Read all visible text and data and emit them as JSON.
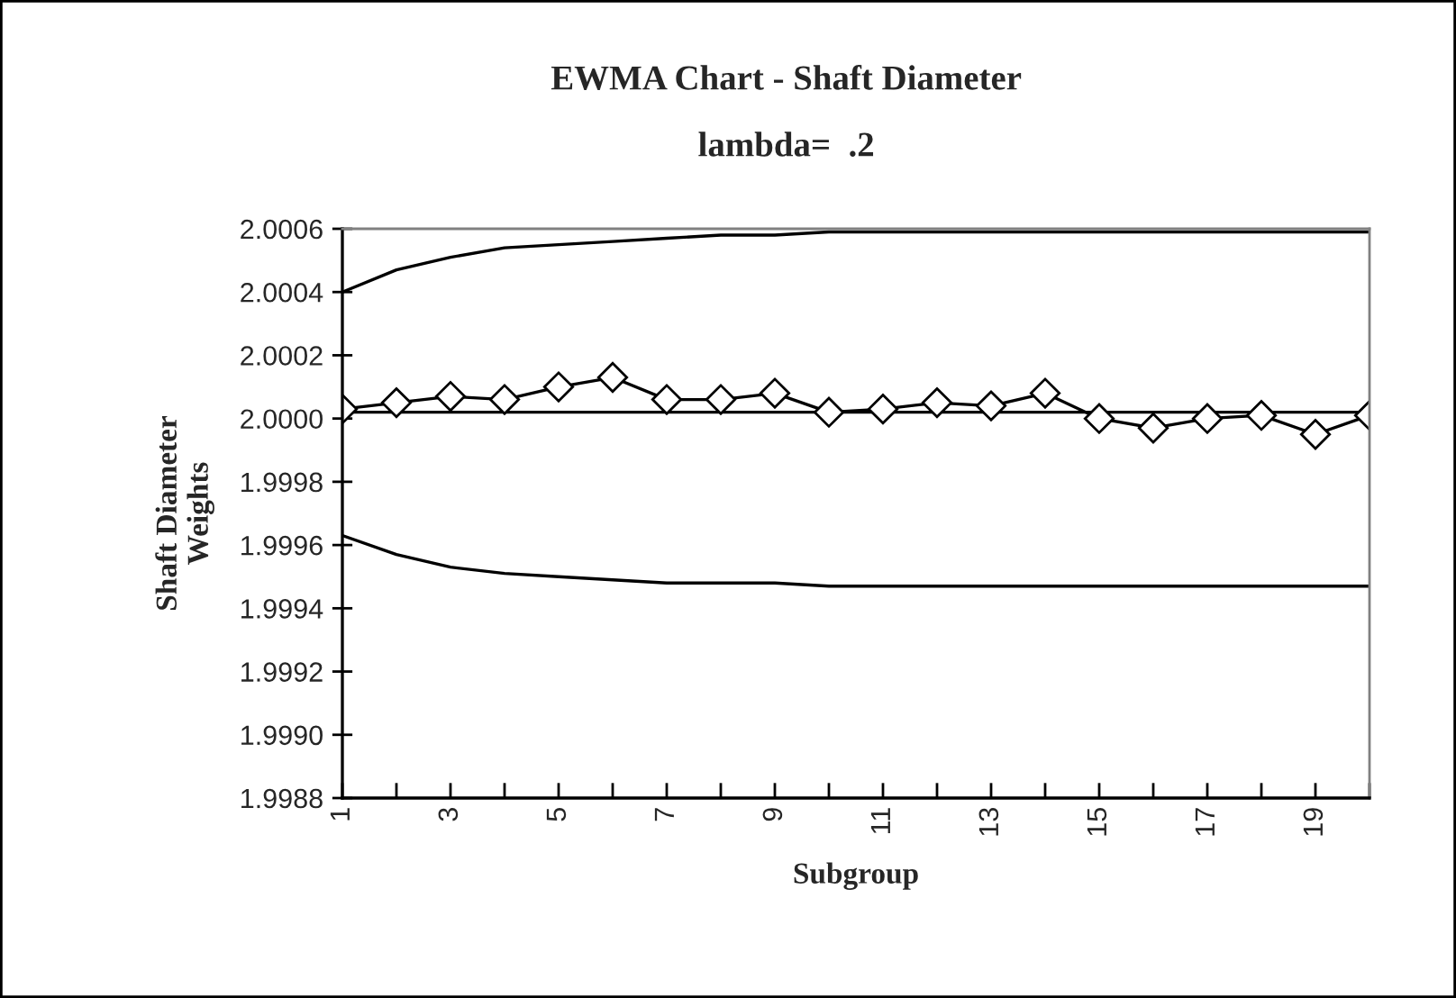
{
  "chart_data": {
    "type": "line",
    "title": "EWMA Chart - Shaft Diameter",
    "subtitle": "lambda=  .2",
    "xlabel": "Subgroup",
    "ylabel": "Shaft Diameter\nWeights",
    "categories": [
      "1",
      null,
      "3",
      null,
      "5",
      null,
      "7",
      null,
      "9",
      null,
      "11",
      null,
      "13",
      null,
      "15",
      null,
      "17",
      null,
      "19",
      null
    ],
    "series": [
      {
        "color": "#000000",
        "marker": "none",
        "values": [
          2.0004,
          2.00047,
          2.00051,
          2.00054,
          2.00055,
          2.00056,
          2.00057,
          2.00058,
          2.00058,
          2.00059,
          2.00059,
          2.00059,
          2.00059,
          2.00059,
          2.00059,
          2.00059,
          2.00059,
          2.00059,
          2.00059,
          2.00059
        ]
      },
      {
        "color": "#000000",
        "marker": "none",
        "values": [
          1.99963,
          1.99957,
          1.99953,
          1.99951,
          1.9995,
          1.99949,
          1.99948,
          1.99948,
          1.99948,
          1.99947,
          1.99947,
          1.99947,
          1.99947,
          1.99947,
          1.99947,
          1.99947,
          1.99947,
          1.99947,
          1.99947,
          1.99947
        ]
      },
      {
        "color": "#000000",
        "marker": "diamond",
        "values": [
          2.00003,
          2.00005,
          2.00007,
          2.00006,
          2.0001,
          2.00013,
          2.00006,
          2.00006,
          2.00008,
          2.00002,
          2.00003,
          2.00005,
          2.00004,
          2.00008,
          2.0,
          1.99997,
          2.0,
          2.00001,
          1.99995,
          2.00001
        ]
      }
    ],
    "ref_lines": [
      {
        "axis": "y",
        "value": 2.00002,
        "color": "#000000"
      }
    ],
    "ylim": [
      1.9988,
      2.0006
    ],
    "yticks": [
      {
        "value": 1.9988,
        "label": "1.9988"
      },
      {
        "value": 1.999,
        "label": "1.9990"
      },
      {
        "value": 1.9992,
        "label": "1.9992"
      },
      {
        "value": 1.9994,
        "label": "1.9994"
      },
      {
        "value": 1.9996,
        "label": "1.9996"
      },
      {
        "value": 1.9998,
        "label": "1.9998"
      },
      {
        "value": 2.0,
        "label": "2.0000"
      },
      {
        "value": 2.0002,
        "label": "2.0002"
      },
      {
        "value": 2.0004,
        "label": "2.0004"
      },
      {
        "value": 2.0006,
        "label": "2.0006"
      }
    ],
    "grid": false,
    "legend": false
  }
}
